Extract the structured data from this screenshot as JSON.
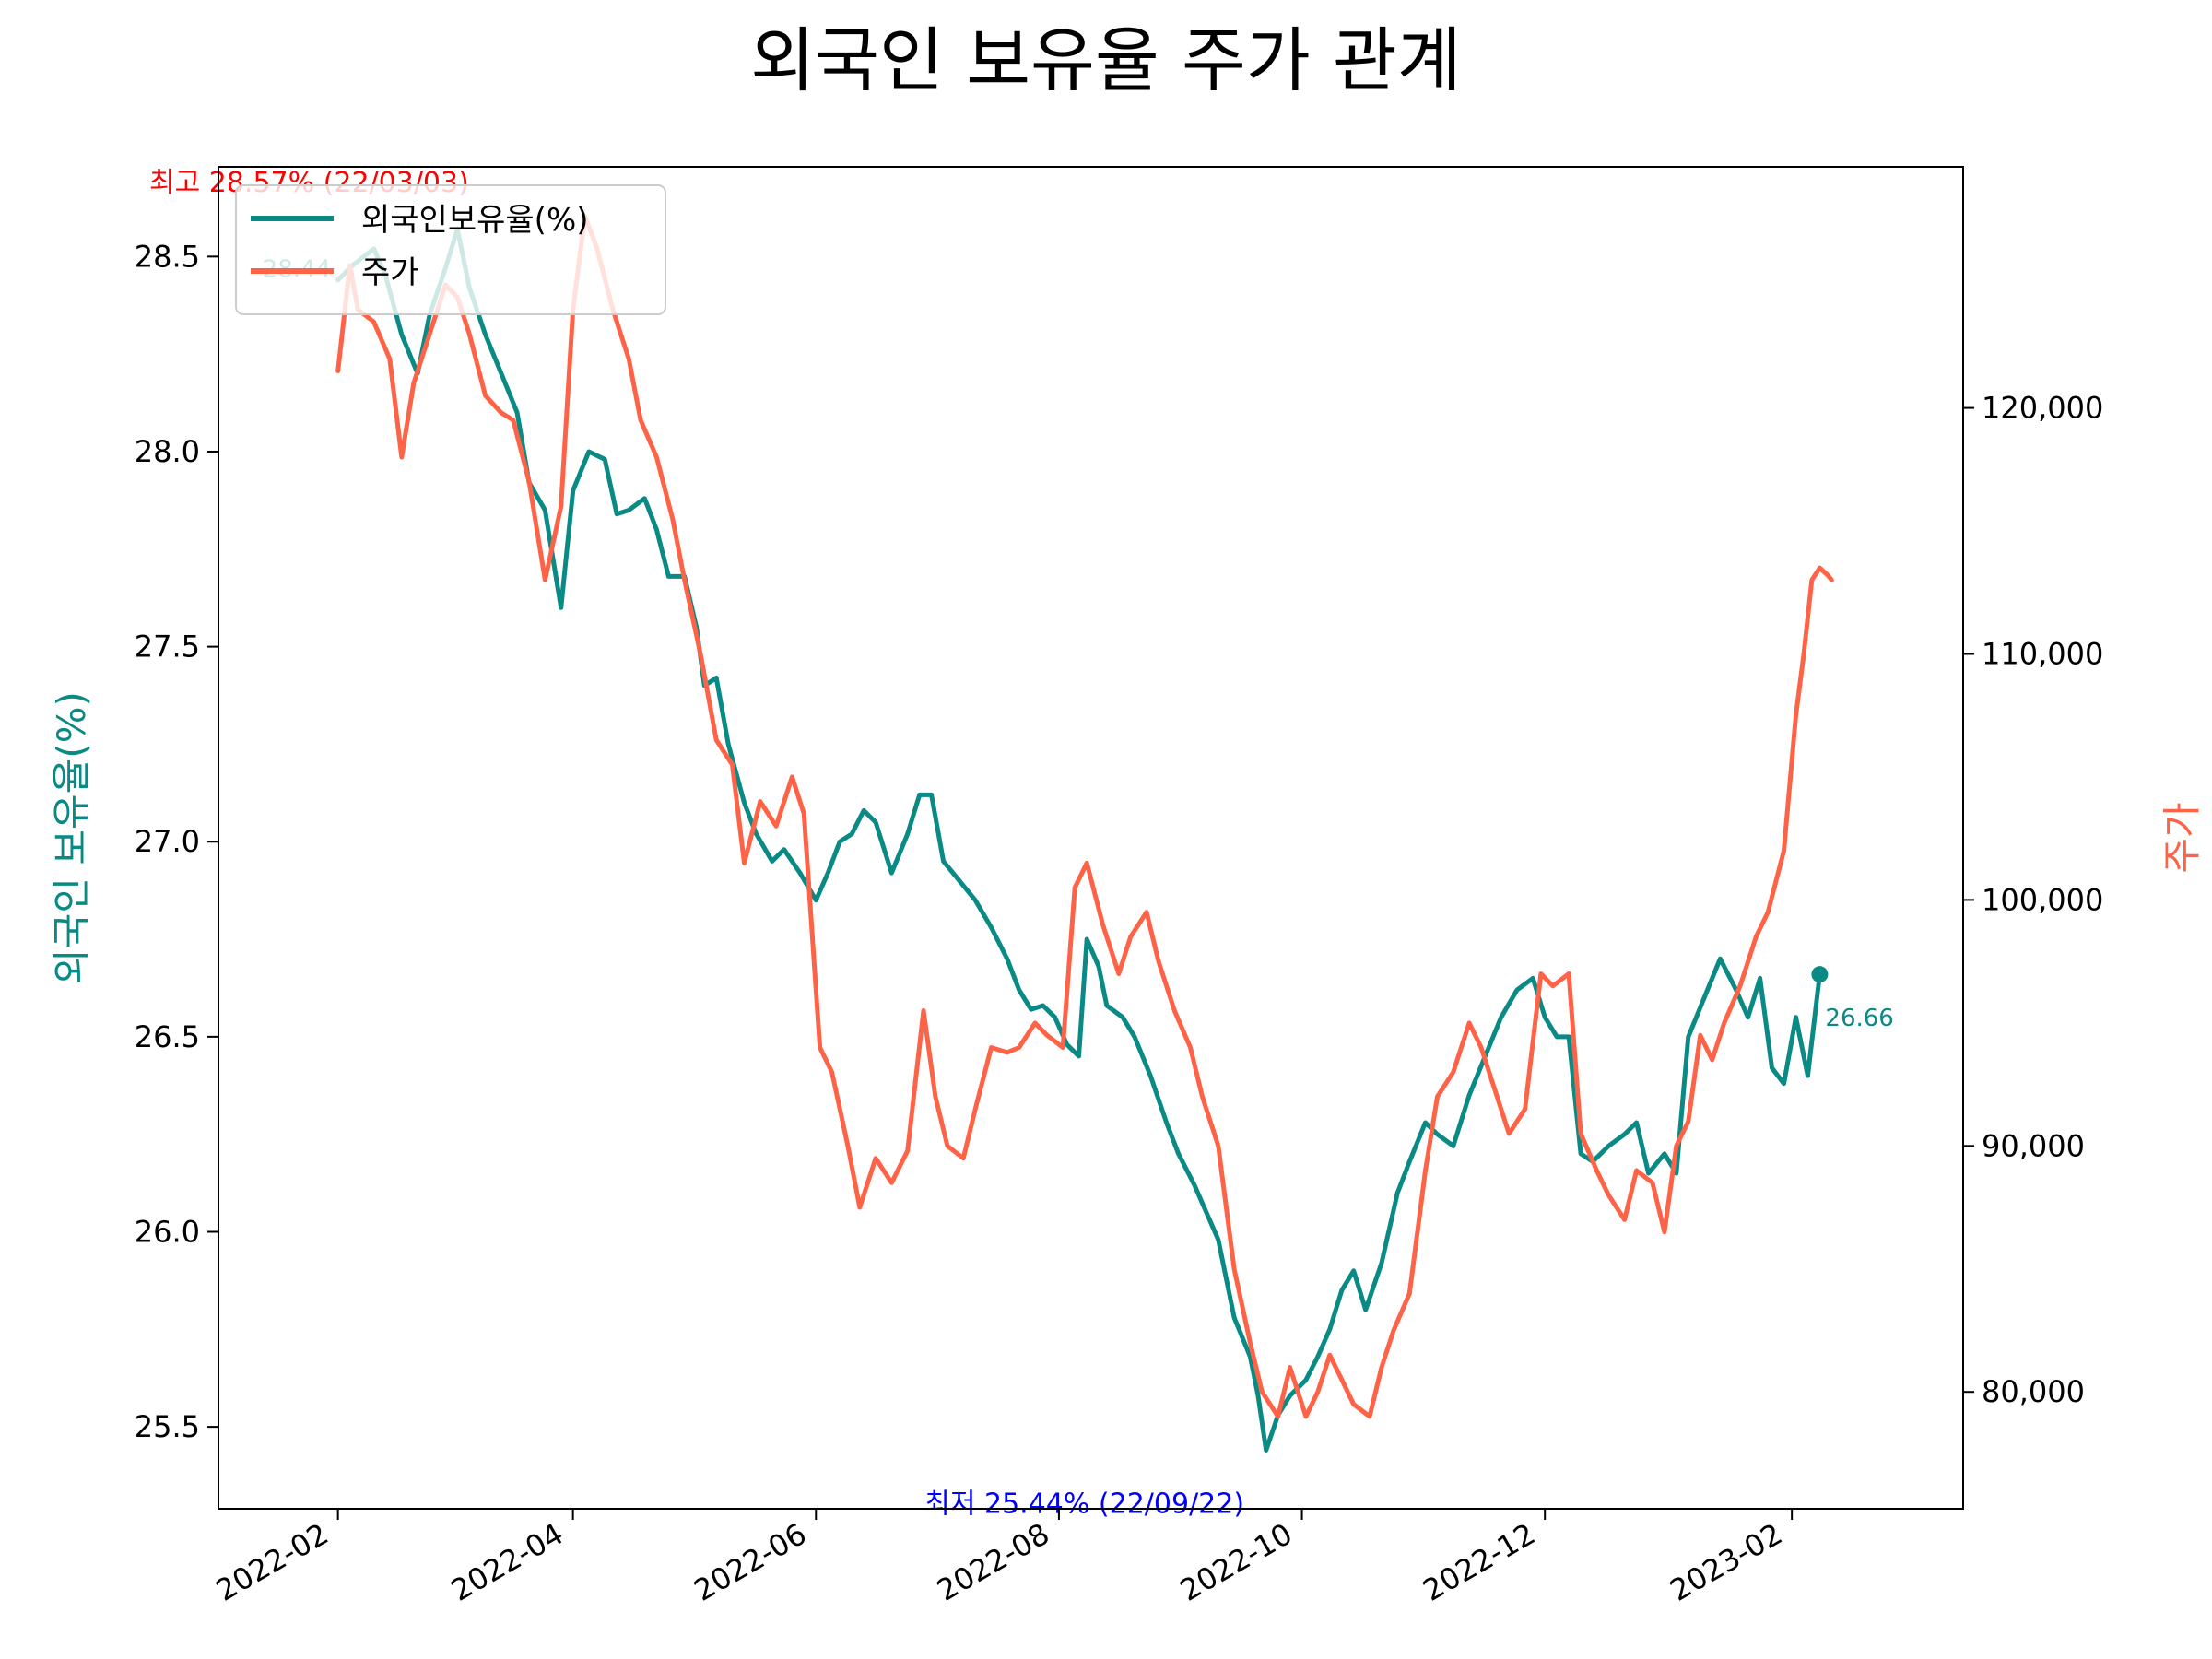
{
  "chart_data": {
    "type": "line",
    "title": "외국인 보유율 주가 관계",
    "ylabel_left": "외국인 보유율(%)",
    "ylabel_right": "주가",
    "xlim": [
      "2022-01-02",
      "2023-03-16"
    ],
    "ylim_left": [
      25.29,
      28.73
    ],
    "ylim_right": [
      75250,
      129800
    ],
    "x_ticks": [
      "2022-02",
      "2022-04",
      "2022-06",
      "2022-08",
      "2022-10",
      "2022-12",
      "2023-02"
    ],
    "x_tick_dates": [
      "2022-02-01",
      "2022-04-01",
      "2022-06-01",
      "2022-08-01",
      "2022-10-01",
      "2022-12-01",
      "2023-02-01"
    ],
    "y_ticks_left": [
      "25.5",
      "26.0",
      "26.5",
      "27.0",
      "27.5",
      "28.0",
      "28.5"
    ],
    "y_tick_values_left": [
      25.5,
      26.0,
      26.5,
      27.0,
      27.5,
      28.0,
      28.5
    ],
    "y_ticks_right": [
      "80,000",
      "90,000",
      "100,000",
      "110,000",
      "120,000"
    ],
    "y_tick_values_right": [
      80000,
      90000,
      100000,
      110000,
      120000
    ],
    "legend": {
      "placement": "upper-left",
      "entries": [
        "외국인보유율(%)",
        "주가"
      ]
    },
    "colors": {
      "holding": "#0a8a84",
      "price": "#ff6347",
      "max": "#ff0000",
      "min": "#0000ff"
    },
    "annotations": {
      "max": {
        "text": "최고 28.57% (22/03/03)",
        "date": "2022-03-03",
        "value": 28.57
      },
      "min": {
        "text": "최저 25.44% (22/09/22)",
        "date": "2022-09-22",
        "value": 25.44
      },
      "start": {
        "text": "28.44",
        "date": "2022-02-01",
        "value": 28.44
      },
      "end": {
        "text": "26.66",
        "date": "2023-02-08",
        "value": 26.66
      }
    },
    "series": [
      {
        "name": "외국인보유율(%)",
        "axis": "left",
        "points": [
          [
            "2022-02-01",
            28.44
          ],
          [
            "2022-02-05",
            28.48
          ],
          [
            "2022-02-10",
            28.52
          ],
          [
            "2022-02-13",
            28.45
          ],
          [
            "2022-02-17",
            28.3
          ],
          [
            "2022-02-21",
            28.2
          ],
          [
            "2022-02-24",
            28.35
          ],
          [
            "2022-02-28",
            28.47
          ],
          [
            "2022-03-03",
            28.57
          ],
          [
            "2022-03-06",
            28.42
          ],
          [
            "2022-03-10",
            28.3
          ],
          [
            "2022-03-14",
            28.2
          ],
          [
            "2022-03-18",
            28.1
          ],
          [
            "2022-03-21",
            27.92
          ],
          [
            "2022-03-25",
            27.85
          ],
          [
            "2022-03-29",
            27.6
          ],
          [
            "2022-04-01",
            27.9
          ],
          [
            "2022-04-05",
            28.0
          ],
          [
            "2022-04-09",
            27.98
          ],
          [
            "2022-04-12",
            27.84
          ],
          [
            "2022-04-15",
            27.85
          ],
          [
            "2022-04-19",
            27.88
          ],
          [
            "2022-04-22",
            27.8
          ],
          [
            "2022-04-25",
            27.68
          ],
          [
            "2022-04-29",
            27.68
          ],
          [
            "2022-05-02",
            27.55
          ],
          [
            "2022-05-04",
            27.4
          ],
          [
            "2022-05-07",
            27.42
          ],
          [
            "2022-05-10",
            27.25
          ],
          [
            "2022-05-14",
            27.1
          ],
          [
            "2022-05-17",
            27.02
          ],
          [
            "2022-05-21",
            26.95
          ],
          [
            "2022-05-24",
            26.98
          ],
          [
            "2022-05-28",
            26.92
          ],
          [
            "2022-06-01",
            26.85
          ],
          [
            "2022-06-04",
            26.92
          ],
          [
            "2022-06-07",
            27.0
          ],
          [
            "2022-06-10",
            27.02
          ],
          [
            "2022-06-13",
            27.08
          ],
          [
            "2022-06-16",
            27.05
          ],
          [
            "2022-06-20",
            26.92
          ],
          [
            "2022-06-24",
            27.02
          ],
          [
            "2022-06-27",
            27.12
          ],
          [
            "2022-06-30",
            27.12
          ],
          [
            "2022-07-03",
            26.95
          ],
          [
            "2022-07-07",
            26.9
          ],
          [
            "2022-07-11",
            26.85
          ],
          [
            "2022-07-15",
            26.78
          ],
          [
            "2022-07-19",
            26.7
          ],
          [
            "2022-07-22",
            26.62
          ],
          [
            "2022-07-25",
            26.57
          ],
          [
            "2022-07-28",
            26.58
          ],
          [
            "2022-07-31",
            26.55
          ],
          [
            "2022-08-03",
            26.48
          ],
          [
            "2022-08-06",
            26.45
          ],
          [
            "2022-08-08",
            26.75
          ],
          [
            "2022-08-11",
            26.68
          ],
          [
            "2022-08-13",
            26.58
          ],
          [
            "2022-08-17",
            26.55
          ],
          [
            "2022-08-20",
            26.5
          ],
          [
            "2022-08-24",
            26.4
          ],
          [
            "2022-08-28",
            26.28
          ],
          [
            "2022-08-31",
            26.2
          ],
          [
            "2022-09-04",
            26.12
          ],
          [
            "2022-09-07",
            26.05
          ],
          [
            "2022-09-10",
            25.98
          ],
          [
            "2022-09-14",
            25.78
          ],
          [
            "2022-09-18",
            25.68
          ],
          [
            "2022-09-20",
            25.58
          ],
          [
            "2022-09-22",
            25.44
          ],
          [
            "2022-09-25",
            25.53
          ],
          [
            "2022-09-28",
            25.58
          ],
          [
            "2022-10-02",
            25.62
          ],
          [
            "2022-10-05",
            25.68
          ],
          [
            "2022-10-08",
            25.75
          ],
          [
            "2022-10-11",
            25.85
          ],
          [
            "2022-10-14",
            25.9
          ],
          [
            "2022-10-17",
            25.8
          ],
          [
            "2022-10-21",
            25.92
          ],
          [
            "2022-10-25",
            26.1
          ],
          [
            "2022-10-28",
            26.18
          ],
          [
            "2022-11-01",
            26.28
          ],
          [
            "2022-11-04",
            26.25
          ],
          [
            "2022-11-08",
            26.22
          ],
          [
            "2022-11-12",
            26.35
          ],
          [
            "2022-11-16",
            26.45
          ],
          [
            "2022-11-20",
            26.55
          ],
          [
            "2022-11-24",
            26.62
          ],
          [
            "2022-11-28",
            26.65
          ],
          [
            "2022-12-01",
            26.55
          ],
          [
            "2022-12-04",
            26.5
          ],
          [
            "2022-12-07",
            26.5
          ],
          [
            "2022-12-10",
            26.2
          ],
          [
            "2022-12-13",
            26.18
          ],
          [
            "2022-12-17",
            26.22
          ],
          [
            "2022-12-21",
            26.25
          ],
          [
            "2022-12-24",
            26.28
          ],
          [
            "2022-12-27",
            26.15
          ],
          [
            "2022-12-31",
            26.2
          ],
          [
            "2023-01-03",
            26.15
          ],
          [
            "2023-01-06",
            26.5
          ],
          [
            "2023-01-10",
            26.6
          ],
          [
            "2023-01-14",
            26.7
          ],
          [
            "2023-01-18",
            26.62
          ],
          [
            "2023-01-21",
            26.55
          ],
          [
            "2023-01-24",
            26.65
          ],
          [
            "2023-01-27",
            26.42
          ],
          [
            "2023-01-30",
            26.38
          ],
          [
            "2023-02-02",
            26.55
          ],
          [
            "2023-02-05",
            26.4
          ],
          [
            "2023-02-08",
            26.66
          ]
        ]
      },
      {
        "name": "주가",
        "axis": "right",
        "points": [
          [
            "2022-02-01",
            121500
          ],
          [
            "2022-02-04",
            125800
          ],
          [
            "2022-02-06",
            124000
          ],
          [
            "2022-02-10",
            123500
          ],
          [
            "2022-02-14",
            122000
          ],
          [
            "2022-02-17",
            118000
          ],
          [
            "2022-02-20",
            121000
          ],
          [
            "2022-02-24",
            123000
          ],
          [
            "2022-02-28",
            125000
          ],
          [
            "2022-03-03",
            124500
          ],
          [
            "2022-03-06",
            123000
          ],
          [
            "2022-03-10",
            120500
          ],
          [
            "2022-03-14",
            119800
          ],
          [
            "2022-03-17",
            119500
          ],
          [
            "2022-03-21",
            117000
          ],
          [
            "2022-03-25",
            113000
          ],
          [
            "2022-03-29",
            116000
          ],
          [
            "2022-04-01",
            124000
          ],
          [
            "2022-04-04",
            127800
          ],
          [
            "2022-04-07",
            126500
          ],
          [
            "2022-04-11",
            124000
          ],
          [
            "2022-04-15",
            122000
          ],
          [
            "2022-04-18",
            119500
          ],
          [
            "2022-04-22",
            118000
          ],
          [
            "2022-04-26",
            115500
          ],
          [
            "2022-04-29",
            113000
          ],
          [
            "2022-05-03",
            110000
          ],
          [
            "2022-05-07",
            106500
          ],
          [
            "2022-05-11",
            105500
          ],
          [
            "2022-05-14",
            101500
          ],
          [
            "2022-05-18",
            104000
          ],
          [
            "2022-05-22",
            103000
          ],
          [
            "2022-05-26",
            105000
          ],
          [
            "2022-05-29",
            103500
          ],
          [
            "2022-06-02",
            94000
          ],
          [
            "2022-06-05",
            93000
          ],
          [
            "2022-06-09",
            90000
          ],
          [
            "2022-06-12",
            87500
          ],
          [
            "2022-06-16",
            89500
          ],
          [
            "2022-06-20",
            88500
          ],
          [
            "2022-06-24",
            89800
          ],
          [
            "2022-06-28",
            95500
          ],
          [
            "2022-07-01",
            92000
          ],
          [
            "2022-07-04",
            90000
          ],
          [
            "2022-07-08",
            89500
          ],
          [
            "2022-07-11",
            91500
          ],
          [
            "2022-07-15",
            94000
          ],
          [
            "2022-07-19",
            93800
          ],
          [
            "2022-07-22",
            94000
          ],
          [
            "2022-07-26",
            95000
          ],
          [
            "2022-07-29",
            94500
          ],
          [
            "2022-08-02",
            94000
          ],
          [
            "2022-08-05",
            100500
          ],
          [
            "2022-08-08",
            101500
          ],
          [
            "2022-08-12",
            99000
          ],
          [
            "2022-08-16",
            97000
          ],
          [
            "2022-08-19",
            98500
          ],
          [
            "2022-08-23",
            99500
          ],
          [
            "2022-08-26",
            97500
          ],
          [
            "2022-08-30",
            95500
          ],
          [
            "2022-09-03",
            94000
          ],
          [
            "2022-09-06",
            92000
          ],
          [
            "2022-09-10",
            90000
          ],
          [
            "2022-09-14",
            85000
          ],
          [
            "2022-09-18",
            82000
          ],
          [
            "2022-09-21",
            80000
          ],
          [
            "2022-09-25",
            79000
          ],
          [
            "2022-09-28",
            81000
          ],
          [
            "2022-10-02",
            79000
          ],
          [
            "2022-10-05",
            80000
          ],
          [
            "2022-10-08",
            81500
          ],
          [
            "2022-10-11",
            80500
          ],
          [
            "2022-10-14",
            79500
          ],
          [
            "2022-10-18",
            79000
          ],
          [
            "2022-10-21",
            81000
          ],
          [
            "2022-10-24",
            82500
          ],
          [
            "2022-10-28",
            84000
          ],
          [
            "2022-11-01",
            89000
          ],
          [
            "2022-11-04",
            92000
          ],
          [
            "2022-11-08",
            93000
          ],
          [
            "2022-11-12",
            95000
          ],
          [
            "2022-11-15",
            94000
          ],
          [
            "2022-11-19",
            92000
          ],
          [
            "2022-11-22",
            90500
          ],
          [
            "2022-11-26",
            91500
          ],
          [
            "2022-11-30",
            97000
          ],
          [
            "2022-12-03",
            96500
          ],
          [
            "2022-12-07",
            97000
          ],
          [
            "2022-12-10",
            90500
          ],
          [
            "2022-12-14",
            89000
          ],
          [
            "2022-12-17",
            88000
          ],
          [
            "2022-12-21",
            87000
          ],
          [
            "2022-12-24",
            89000
          ],
          [
            "2022-12-28",
            88500
          ],
          [
            "2022-12-31",
            86500
          ],
          [
            "2023-01-03",
            90000
          ],
          [
            "2023-01-06",
            91000
          ],
          [
            "2023-01-09",
            94500
          ],
          [
            "2023-01-12",
            93500
          ],
          [
            "2023-01-15",
            95000
          ],
          [
            "2023-01-19",
            96500
          ],
          [
            "2023-01-23",
            98500
          ],
          [
            "2023-01-26",
            99500
          ],
          [
            "2023-01-30",
            102000
          ],
          [
            "2023-02-02",
            107500
          ],
          [
            "2023-02-04",
            110000
          ],
          [
            "2023-02-06",
            113000
          ],
          [
            "2023-02-08",
            113500
          ],
          [
            "2023-02-10",
            113200
          ],
          [
            "2023-02-11",
            113000
          ]
        ]
      }
    ]
  }
}
